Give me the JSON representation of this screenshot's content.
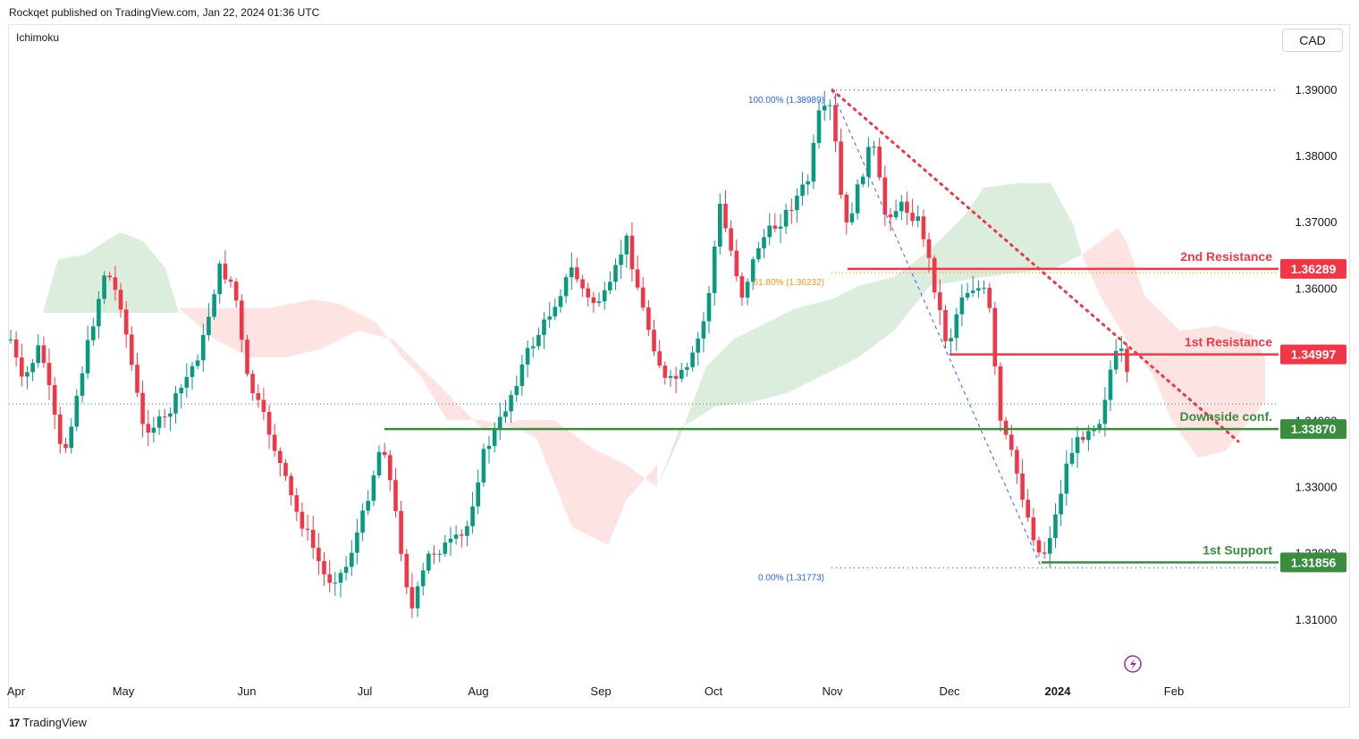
{
  "header": {
    "published": "Rockqet published on TradingView.com, Jan 22, 2024 01:36 UTC"
  },
  "indicator": {
    "name": "Ichimoku"
  },
  "currency_button": {
    "label": "CAD"
  },
  "footer": {
    "brand": "TradingView"
  },
  "colors": {
    "up": "#089981",
    "down": "#f23645",
    "resistance": "#f23645",
    "support": "#388e3c",
    "cloud_bull": "#d7ecd9",
    "cloud_bear": "#fde0df",
    "fib": "#2962ff"
  },
  "chart_data": {
    "type": "candlestick",
    "symbol_scale": "CAD",
    "ylim": [
      1.305,
      1.395
    ],
    "y_ticks": [
      "1.39000",
      "1.38000",
      "1.37000",
      "1.36000",
      "1.34000",
      "1.33000",
      "1.32000",
      "1.31000"
    ],
    "x_ticks": [
      "Apr",
      "May",
      "Jun",
      "Jul",
      "Aug",
      "Sep",
      "Oct",
      "Nov",
      "Dec",
      "2024",
      "Feb"
    ],
    "last_price_approx": 1.3425,
    "levels": [
      {
        "label": "2nd Resistance",
        "value": 1.36289,
        "value_label": "1.36289",
        "kind": "resistance",
        "from": "Nov"
      },
      {
        "label": "1st Resistance",
        "value": 1.34997,
        "value_label": "1.34997",
        "kind": "resistance",
        "from": "Dec"
      },
      {
        "label": "Downside conf.",
        "value": 1.3387,
        "value_label": "1.33870",
        "kind": "support",
        "from": "Jul"
      },
      {
        "label": "1st Support",
        "value": 1.31856,
        "value_label": "1.31856",
        "kind": "support",
        "from": "2024"
      }
    ],
    "fibonacci": [
      {
        "label": "100.00% (1.38989)",
        "value": 1.38989
      },
      {
        "label": "61.80% (1.36232)",
        "value": 1.36232
      },
      {
        "label": "0.00% (1.31773)",
        "value": 1.31773
      }
    ],
    "trendline": {
      "style": "dotted",
      "from": {
        "date": "Nov",
        "value": 1.3899
      },
      "to": {
        "date": "Feb",
        "value": 1.3375
      }
    },
    "ohlc_path": [
      {
        "date": "Apr",
        "value": 1.348
      },
      {
        "date": "Apr",
        "value": 1.343
      },
      {
        "date": "Apr",
        "value": 1.35
      },
      {
        "date": "Apr",
        "value": 1.334
      },
      {
        "date": "Apr",
        "value": 1.338
      },
      {
        "date": "Apr",
        "value": 1.355
      },
      {
        "date": "May",
        "value": 1.365
      },
      {
        "date": "May",
        "value": 1.355
      },
      {
        "date": "May",
        "value": 1.362
      },
      {
        "date": "May",
        "value": 1.338
      },
      {
        "date": "May",
        "value": 1.345
      },
      {
        "date": "May",
        "value": 1.35
      },
      {
        "date": "Jun",
        "value": 1.362
      },
      {
        "date": "Jun",
        "value": 1.365
      },
      {
        "date": "Jun",
        "value": 1.345
      },
      {
        "date": "Jun",
        "value": 1.335
      },
      {
        "date": "Jun",
        "value": 1.325
      },
      {
        "date": "Jun",
        "value": 1.317
      },
      {
        "date": "Jul",
        "value": 1.322
      },
      {
        "date": "Jul",
        "value": 1.324
      },
      {
        "date": "Jul",
        "value": 1.338
      },
      {
        "date": "Jul",
        "value": 1.33
      },
      {
        "date": "Jul",
        "value": 1.32
      },
      {
        "date": "Jul",
        "value": 1.311
      },
      {
        "date": "Aug",
        "value": 1.318
      },
      {
        "date": "Aug",
        "value": 1.317
      },
      {
        "date": "Aug",
        "value": 1.321
      },
      {
        "date": "Aug",
        "value": 1.333
      },
      {
        "date": "Aug",
        "value": 1.34
      },
      {
        "date": "Aug",
        "value": 1.35
      },
      {
        "date": "Sep",
        "value": 1.356
      },
      {
        "date": "Sep",
        "value": 1.366
      },
      {
        "date": "Sep",
        "value": 1.356
      },
      {
        "date": "Sep",
        "value": 1.352
      },
      {
        "date": "Sep",
        "value": 1.345
      },
      {
        "date": "Sep",
        "value": 1.343
      },
      {
        "date": "Sep",
        "value": 1.352
      },
      {
        "date": "Oct",
        "value": 1.372
      },
      {
        "date": "Oct",
        "value": 1.362
      },
      {
        "date": "Oct",
        "value": 1.371
      },
      {
        "date": "Oct",
        "value": 1.372
      },
      {
        "date": "Oct",
        "value": 1.382
      },
      {
        "date": "Oct",
        "value": 1.387
      },
      {
        "date": "Nov",
        "value": 1.388
      },
      {
        "date": "Nov",
        "value": 1.366
      },
      {
        "date": "Nov",
        "value": 1.38
      },
      {
        "date": "Nov",
        "value": 1.376
      },
      {
        "date": "Nov",
        "value": 1.37
      },
      {
        "date": "Nov",
        "value": 1.365
      },
      {
        "date": "Dec",
        "value": 1.358
      },
      {
        "date": "Dec",
        "value": 1.35
      },
      {
        "date": "Dec",
        "value": 1.36
      },
      {
        "date": "Dec",
        "value": 1.356
      },
      {
        "date": "Dec",
        "value": 1.34
      },
      {
        "date": "Dec",
        "value": 1.334
      },
      {
        "date": "Dec",
        "value": 1.32
      },
      {
        "date": "2024",
        "value": 1.325
      },
      {
        "date": "2024",
        "value": 1.336
      },
      {
        "date": "2024",
        "value": 1.339
      },
      {
        "date": "2024",
        "value": 1.349
      },
      {
        "date": "2024",
        "value": 1.3425
      }
    ]
  }
}
